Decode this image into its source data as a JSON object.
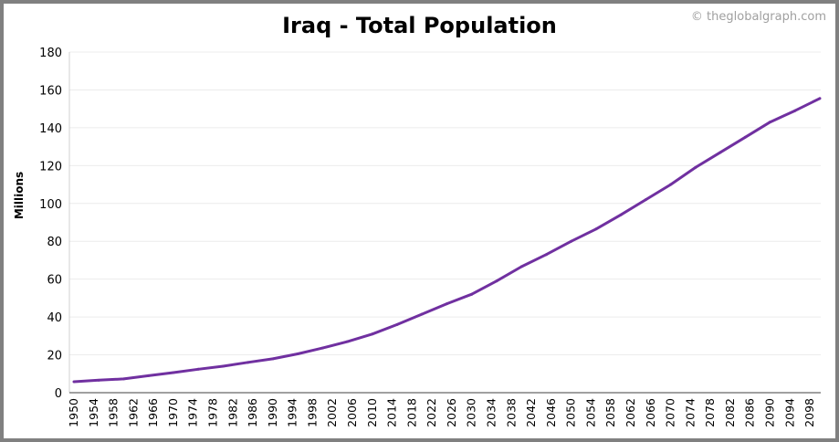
{
  "chart_data": {
    "type": "line",
    "title": "Iraq - Total Population",
    "credit": "© theglobalgraph.com",
    "ylabel": "Millions",
    "xlabel": "",
    "xlim": [
      1950,
      2100
    ],
    "ylim": [
      0,
      180
    ],
    "yticks": [
      0,
      20,
      40,
      60,
      80,
      100,
      120,
      140,
      160,
      180
    ],
    "xticks": [
      1950,
      1954,
      1958,
      1962,
      1966,
      1970,
      1974,
      1978,
      1982,
      1986,
      1990,
      1994,
      1998,
      2002,
      2006,
      2010,
      2014,
      2018,
      2022,
      2026,
      2030,
      2034,
      2038,
      2042,
      2046,
      2050,
      2054,
      2058,
      2062,
      2066,
      2070,
      2074,
      2078,
      2082,
      2086,
      2090,
      2094,
      2098
    ],
    "grid": "horizontal",
    "line_color": "#7030a0",
    "series": [
      {
        "x": [
          1950,
          1955,
          1960,
          1965,
          1970,
          1975,
          1980,
          1985,
          1990,
          1995,
          2000,
          2005,
          2010,
          2015,
          2020,
          2025,
          2030,
          2035,
          2040,
          2045,
          2050,
          2055,
          2060,
          2065,
          2070,
          2075,
          2080,
          2085,
          2090,
          2095,
          2100
        ],
        "values": [
          5.8,
          6.6,
          7.3,
          9.0,
          10.6,
          12.4,
          14.0,
          16.0,
          17.9,
          20.5,
          23.6,
          27.0,
          31.0,
          36.0,
          41.5,
          47.0,
          52.0,
          59.0,
          66.6,
          73.0,
          80.0,
          86.5,
          94.0,
          102.0,
          110.0,
          119.0,
          127.0,
          135.0,
          143.0,
          149.0,
          155.5
        ]
      }
    ]
  }
}
